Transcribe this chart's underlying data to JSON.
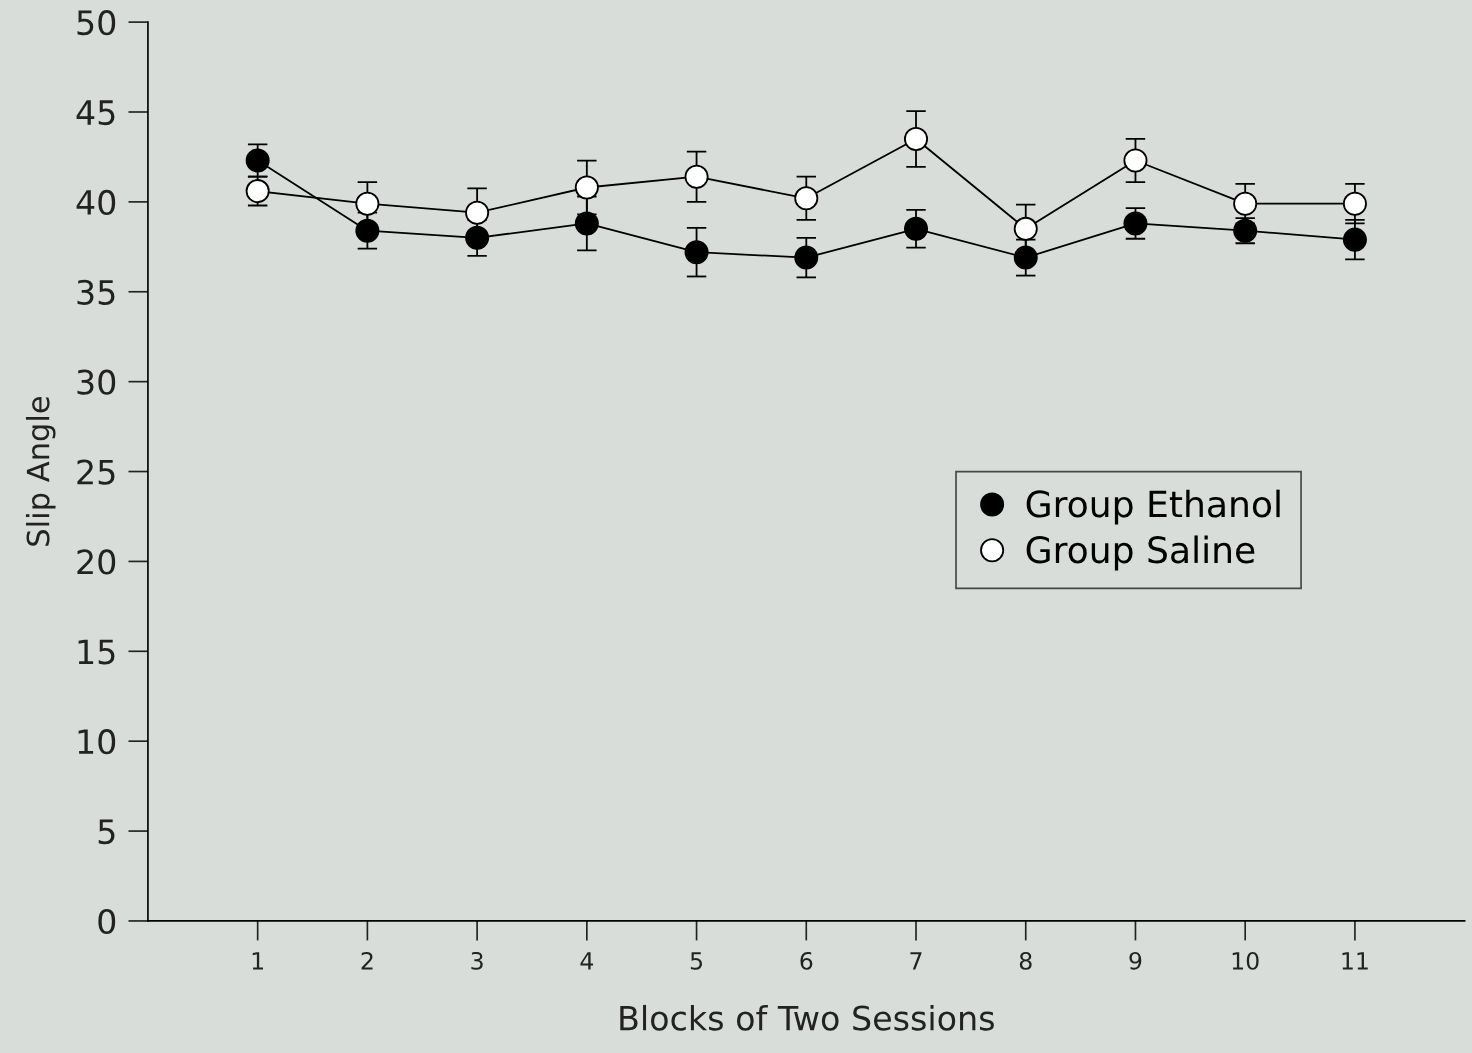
{
  "chart_data": {
    "type": "line",
    "xlabel": "Blocks of Two Sessions",
    "ylabel": "Slip Angle",
    "x": [
      1,
      2,
      3,
      4,
      5,
      6,
      7,
      8,
      9,
      10,
      11
    ],
    "xlim": [
      0,
      12
    ],
    "xticks": [
      1,
      2,
      3,
      4,
      5,
      6,
      7,
      8,
      9,
      10,
      11
    ],
    "ylim": [
      0,
      50
    ],
    "yticks": [
      0,
      5,
      10,
      15,
      20,
      25,
      30,
      35,
      40,
      45,
      50
    ],
    "grid": false,
    "legend": "right",
    "marker": "circle",
    "line_style": "solid",
    "series": [
      {
        "name": "Group Ethanol",
        "color": "#000000",
        "values": [
          42.3,
          38.4,
          38.0,
          38.8,
          37.2,
          36.9,
          38.5,
          36.9,
          38.8,
          38.4,
          37.9
        ],
        "errors": [
          0.9,
          1.0,
          1.0,
          1.5,
          1.35,
          1.1,
          1.05,
          1.0,
          0.85,
          0.7,
          1.1
        ]
      },
      {
        "name": "Group Saline",
        "color": "#ffffff",
        "values": [
          40.6,
          39.9,
          39.4,
          40.8,
          41.4,
          40.2,
          43.5,
          38.5,
          42.3,
          39.9,
          39.9
        ],
        "errors": [
          0.8,
          1.2,
          1.35,
          1.5,
          1.4,
          1.2,
          1.55,
          1.35,
          1.2,
          1.1,
          1.1
        ]
      }
    ]
  }
}
